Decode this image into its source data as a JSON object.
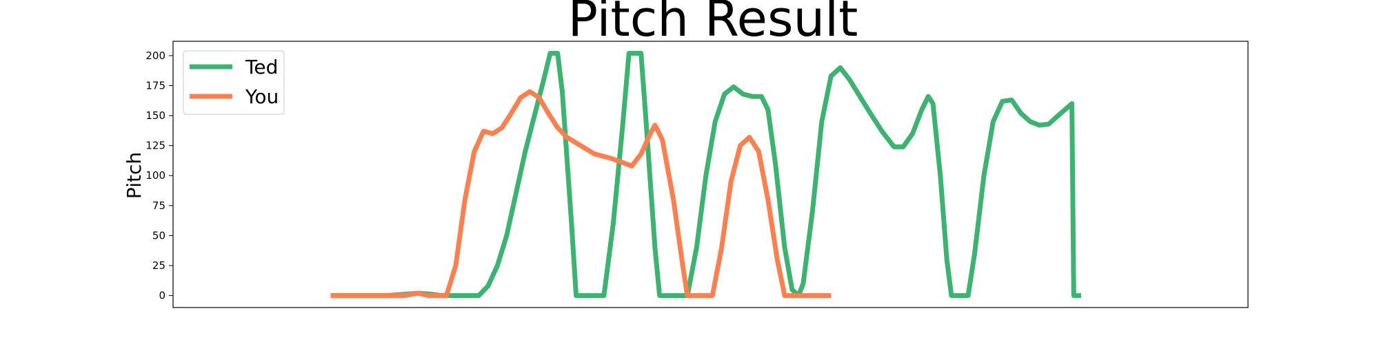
{
  "chart_data": {
    "type": "line",
    "title": "Pitch Result",
    "xlabel": "",
    "ylabel": "Pitch",
    "xlim": [
      -30,
      1130
    ],
    "ylim": [
      -10,
      212
    ],
    "yticks": [
      0,
      25,
      50,
      75,
      100,
      125,
      150,
      175,
      200
    ],
    "xticks_visible": false,
    "grid": false,
    "legend": "top-left",
    "series": [
      {
        "name": "Ted",
        "color": "#3cb371",
        "points": [
          [
            140,
            0
          ],
          [
            160,
            0
          ],
          [
            180,
            0
          ],
          [
            200,
            0
          ],
          [
            220,
            1
          ],
          [
            235,
            2
          ],
          [
            250,
            1
          ],
          [
            260,
            0
          ],
          [
            280,
            0
          ],
          [
            300,
            0
          ],
          [
            310,
            8
          ],
          [
            320,
            25
          ],
          [
            330,
            50
          ],
          [
            340,
            85
          ],
          [
            350,
            120
          ],
          [
            360,
            150
          ],
          [
            370,
            180
          ],
          [
            377,
            202
          ],
          [
            385,
            202
          ],
          [
            390,
            170
          ],
          [
            400,
            60
          ],
          [
            405,
            0
          ],
          [
            420,
            0
          ],
          [
            435,
            0
          ],
          [
            445,
            60
          ],
          [
            455,
            140
          ],
          [
            462,
            202
          ],
          [
            475,
            202
          ],
          [
            480,
            150
          ],
          [
            490,
            40
          ],
          [
            495,
            0
          ],
          [
            510,
            0
          ],
          [
            525,
            0
          ],
          [
            535,
            40
          ],
          [
            545,
            100
          ],
          [
            555,
            145
          ],
          [
            565,
            168
          ],
          [
            575,
            174
          ],
          [
            585,
            168
          ],
          [
            595,
            166
          ],
          [
            605,
            166
          ],
          [
            612,
            155
          ],
          [
            620,
            110
          ],
          [
            630,
            40
          ],
          [
            638,
            5
          ],
          [
            645,
            0
          ],
          [
            650,
            10
          ],
          [
            660,
            70
          ],
          [
            670,
            145
          ],
          [
            680,
            183
          ],
          [
            690,
            190
          ],
          [
            700,
            180
          ],
          [
            720,
            155
          ],
          [
            735,
            137
          ],
          [
            748,
            124
          ],
          [
            758,
            124
          ],
          [
            768,
            135
          ],
          [
            778,
            155
          ],
          [
            785,
            166
          ],
          [
            790,
            160
          ],
          [
            798,
            100
          ],
          [
            805,
            30
          ],
          [
            810,
            0
          ],
          [
            820,
            0
          ],
          [
            828,
            0
          ],
          [
            835,
            35
          ],
          [
            845,
            100
          ],
          [
            855,
            145
          ],
          [
            865,
            162
          ],
          [
            875,
            163
          ],
          [
            885,
            152
          ],
          [
            895,
            145
          ],
          [
            905,
            142
          ],
          [
            915,
            143
          ],
          [
            925,
            150
          ],
          [
            940,
            160
          ],
          [
            942,
            0
          ],
          [
            950,
            0
          ]
        ]
      },
      {
        "name": "You",
        "color": "#fa8050",
        "points": [
          [
            140,
            0
          ],
          [
            160,
            0
          ],
          [
            180,
            0
          ],
          [
            200,
            0
          ],
          [
            220,
            0
          ],
          [
            235,
            2
          ],
          [
            245,
            0
          ],
          [
            255,
            0
          ],
          [
            265,
            0
          ],
          [
            275,
            25
          ],
          [
            285,
            80
          ],
          [
            295,
            120
          ],
          [
            305,
            137
          ],
          [
            315,
            135
          ],
          [
            325,
            140
          ],
          [
            335,
            152
          ],
          [
            345,
            165
          ],
          [
            355,
            170
          ],
          [
            365,
            165
          ],
          [
            375,
            152
          ],
          [
            385,
            140
          ],
          [
            395,
            132
          ],
          [
            410,
            125
          ],
          [
            425,
            118
          ],
          [
            440,
            115
          ],
          [
            455,
            111
          ],
          [
            465,
            108
          ],
          [
            475,
            118
          ],
          [
            485,
            135
          ],
          [
            490,
            142
          ],
          [
            498,
            130
          ],
          [
            510,
            80
          ],
          [
            520,
            25
          ],
          [
            525,
            0
          ],
          [
            540,
            0
          ],
          [
            552,
            0
          ],
          [
            562,
            40
          ],
          [
            572,
            95
          ],
          [
            582,
            125
          ],
          [
            592,
            132
          ],
          [
            602,
            120
          ],
          [
            612,
            80
          ],
          [
            622,
            30
          ],
          [
            630,
            0
          ],
          [
            650,
            0
          ],
          [
            670,
            0
          ],
          [
            680,
            0
          ]
        ]
      }
    ]
  }
}
